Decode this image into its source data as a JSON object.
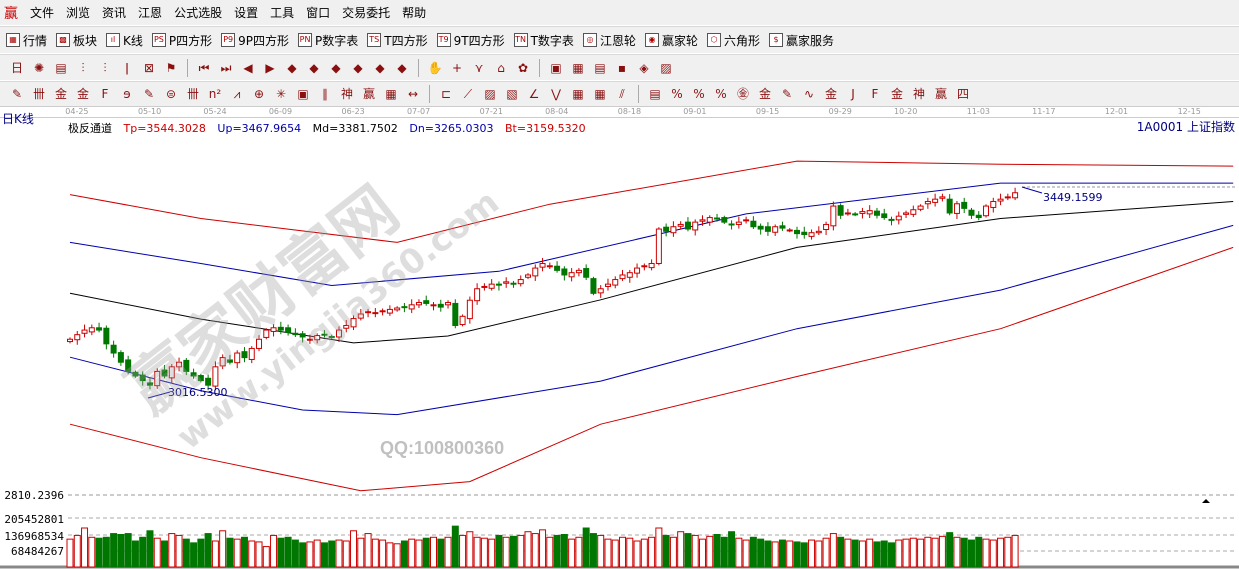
{
  "menu": {
    "logo": "赢",
    "items": [
      "文件",
      "浏览",
      "资讯",
      "江恩",
      "公式选股",
      "设置",
      "工具",
      "窗口",
      "交易委托",
      "帮助"
    ]
  },
  "toolbar1": [
    {
      "icon": "table-icon",
      "glyph": "▦",
      "label": "行情"
    },
    {
      "icon": "blocks-icon",
      "glyph": "▩",
      "label": "板块"
    },
    {
      "icon": "kline-icon",
      "glyph": "ıl",
      "label": "K线"
    },
    {
      "icon": "ps-icon",
      "glyph": "PS",
      "label": "P四方形"
    },
    {
      "icon": "p9-icon",
      "glyph": "P9",
      "label": "9P四方形"
    },
    {
      "icon": "pn-icon",
      "glyph": "PN",
      "label": "P数字表"
    },
    {
      "icon": "ts-icon",
      "glyph": "TS",
      "label": "T四方形"
    },
    {
      "icon": "t9-icon",
      "glyph": "T9",
      "label": "9T四方形"
    },
    {
      "icon": "tn-icon",
      "glyph": "TN",
      "label": "T数字表"
    },
    {
      "icon": "gann-wheel-icon",
      "glyph": "◎",
      "label": "江恩轮"
    },
    {
      "icon": "yingjia-wheel-icon",
      "glyph": "◉",
      "label": "赢家轮"
    },
    {
      "icon": "hexagon-icon",
      "glyph": "⬡",
      "label": "六角形"
    },
    {
      "icon": "dollar-icon",
      "glyph": "$",
      "label": "赢家服务"
    }
  ],
  "toolbar2": [
    "period-icon",
    "chart-icon",
    "doc-icon",
    "bars3-icon",
    "bars9-icon",
    "candle-icon",
    "extreme-icon",
    "flag-icon",
    "|",
    "first-icon",
    "last-icon",
    "left-icon",
    "right-icon",
    "nav1-icon",
    "nav2-icon",
    "nav3-icon",
    "nav4-icon",
    "nav5-icon",
    "nav6-icon",
    "|",
    "hand-icon",
    "crosshair-icon",
    "line-icon",
    "node-icon",
    "pattern-icon",
    "|",
    "calendar-icon",
    "calculator-icon",
    "note-icon",
    "save-icon",
    "network-icon",
    "export-icon"
  ],
  "toolbar2_glyphs": [
    "日",
    "✺",
    "▤",
    "⫶",
    "⫶",
    "ǀ",
    "⊠",
    "⚑",
    "",
    "⏮",
    "⏭",
    "◀",
    "▶",
    "◆",
    "◆",
    "◆",
    "◆",
    "◆",
    "◆",
    "",
    "✋",
    "+",
    "⋎",
    "⌂",
    "✿",
    "",
    "▣",
    "▦",
    "▤",
    "▪",
    "◈",
    "▨"
  ],
  "toolbar3": [
    "pen-icon",
    "grid1-icon",
    "gold1-icon",
    "gold2-icon",
    "fib-icon",
    "spiral-icon",
    "pen2-icon",
    "circle-icon",
    "grid2-icon",
    "n2-icon",
    "angle-icon",
    "target-icon",
    "star-icon",
    "square-icon",
    "lines-icon",
    "god-icon",
    "win-icon",
    "box-icon",
    "span-icon",
    "|",
    "rect-icon",
    "fan-icon",
    "diag-icon",
    "fan2-icon",
    "angle2-icon",
    "wave-icon",
    "grid3-icon",
    "grid4-icon",
    "slash-icon",
    "|",
    "list-icon",
    "percent1-icon",
    "percent2-icon",
    "percent3-icon",
    "gold3-icon",
    "gold4-icon",
    "pen3-icon",
    "wave2-icon",
    "gold5-icon",
    "j-icon",
    "f-icon",
    "gold6-icon",
    "shen-icon",
    "ying-icon",
    "si-icon"
  ],
  "toolbar3_glyphs": [
    "✎",
    "卌",
    "金",
    "金",
    "F",
    "ɘ",
    "✎",
    "⊜",
    "卌",
    "n²",
    "⩘",
    "⊕",
    "✳",
    "▣",
    "∥",
    "神",
    "赢",
    "▦",
    "↔",
    "",
    "⊏",
    "⟋",
    "▨",
    "▧",
    "∠",
    "⋁",
    "▦",
    "▦",
    "⫽",
    "",
    "▤",
    "%",
    "%",
    "%",
    "㊎",
    "金",
    "✎",
    "∿",
    "金",
    "J",
    "F",
    "金",
    "神",
    "赢",
    "四"
  ],
  "period_label": "日K线",
  "indicator": {
    "name": "极反通道",
    "tp": "Tp=3544.3028",
    "up": "Up=3467.9654",
    "md": "Md=3381.7502",
    "dn": "Dn=3265.0303",
    "bt": "Bt=3159.5320"
  },
  "symbol": "1A0001  上证指数",
  "watermark": {
    "brand": "赢家财富网",
    "url": "www.yingjia360.com",
    "qq": "QQ:100800360"
  },
  "chart_data": {
    "type": "candlestick",
    "ylim": [
      2780,
      3590
    ],
    "date_ticks": [
      {
        "i": 1,
        "label": "04-25"
      },
      {
        "i": 11,
        "label": "05-10"
      },
      {
        "i": 20,
        "label": "05-24"
      },
      {
        "i": 29,
        "label": "06-09"
      },
      {
        "i": 39,
        "label": "06-23"
      },
      {
        "i": 48,
        "label": "07-07"
      },
      {
        "i": 58,
        "label": "07-21"
      },
      {
        "i": 67,
        "label": "08-04"
      },
      {
        "i": 77,
        "label": "08-18"
      },
      {
        "i": 86,
        "label": "09-01"
      },
      {
        "i": 96,
        "label": "09-15"
      },
      {
        "i": 106,
        "label": "09-29"
      },
      {
        "i": 115,
        "label": "10-20"
      },
      {
        "i": 125,
        "label": "11-03"
      },
      {
        "i": 134,
        "label": "11-17"
      },
      {
        "i": 144,
        "label": "12-01"
      },
      {
        "i": 154,
        "label": "12-15"
      }
    ],
    "closes": [
      3130,
      3140,
      3150,
      3155,
      3150,
      3120,
      3100,
      3080,
      3060,
      3050,
      3040,
      3030,
      3060,
      3050,
      3070,
      3080,
      3060,
      3050,
      3040,
      3030,
      3070,
      3090,
      3080,
      3100,
      3090,
      3110,
      3130,
      3150,
      3155,
      3150,
      3145,
      3140,
      3135,
      3130,
      3138,
      3140,
      3135,
      3150,
      3160,
      3175,
      3185,
      3190,
      3188,
      3192,
      3195,
      3198,
      3200,
      3205,
      3210,
      3208,
      3205,
      3200,
      3210,
      3160,
      3180,
      3215,
      3240,
      3245,
      3250,
      3248,
      3255,
      3250,
      3260,
      3270,
      3285,
      3295,
      3290,
      3280,
      3270,
      3275,
      3280,
      3265,
      3230,
      3240,
      3250,
      3260,
      3270,
      3275,
      3285,
      3290,
      3295,
      3370,
      3365,
      3375,
      3380,
      3370,
      3385,
      3390,
      3395,
      3392,
      3385,
      3380,
      3385,
      3390,
      3375,
      3370,
      3365,
      3375,
      3372,
      3368,
      3360,
      3358,
      3362,
      3365,
      3380,
      3420,
      3400,
      3405,
      3402,
      3408,
      3410,
      3400,
      3395,
      3390,
      3398,
      3405,
      3412,
      3420,
      3430,
      3435,
      3440,
      3405,
      3425,
      3415,
      3400,
      3395,
      3420,
      3430,
      3435,
      3440,
      3449
    ],
    "volumes": [
      150000000.0,
      170000000.0,
      210000000.0,
      160000000.0,
      155000000.0,
      160000000.0,
      180000000.0,
      175000000.0,
      180000000.0,
      140000000.0,
      160000000.0,
      195000000.0,
      155000000.0,
      140000000.0,
      180000000.0,
      170000000.0,
      150000000.0,
      130000000.0,
      150000000.0,
      180000000.0,
      140000000.0,
      195000000.0,
      155000000.0,
      150000000.0,
      160000000.0,
      140000000.0,
      135000000.0,
      110000000.0,
      170000000.0,
      155000000.0,
      160000000.0,
      145000000.0,
      130000000.0,
      135000000.0,
      145000000.0,
      130000000.0,
      140000000.0,
      145000000.0,
      140000000.0,
      195000000.0,
      155000000.0,
      180000000.0,
      150000000.0,
      145000000.0,
      130000000.0,
      125000000.0,
      140000000.0,
      150000000.0,
      145000000.0,
      155000000.0,
      160000000.0,
      150000000.0,
      160000000.0,
      220000000.0,
      170000000.0,
      190000000.0,
      160000000.0,
      155000000.0,
      150000000.0,
      170000000.0,
      160000000.0,
      165000000.0,
      170000000.0,
      190000000.0,
      180000000.0,
      200000000.0,
      160000000.0,
      170000000.0,
      175000000.0,
      150000000.0,
      160000000.0,
      210000000.0,
      180000000.0,
      170000000.0,
      150000000.0,
      145000000.0,
      160000000.0,
      155000000.0,
      140000000.0,
      150000000.0,
      160000000.0,
      210000000.0,
      170000000.0,
      160000000.0,
      190000000.0,
      180000000.0,
      170000000.0,
      150000000.0,
      165000000.0,
      175000000.0,
      160000000.0,
      190000000.0,
      155000000.0,
      145000000.0,
      160000000.0,
      150000000.0,
      140000000.0,
      135000000.0,
      145000000.0,
      140000000.0,
      135000000.0,
      130000000.0,
      145000000.0,
      140000000.0,
      155000000.0,
      180000000.0,
      160000000.0,
      150000000.0,
      145000000.0,
      140000000.0,
      150000000.0,
      135000000.0,
      140000000.0,
      130000000.0,
      145000000.0,
      150000000.0,
      155000000.0,
      150000000.0,
      160000000.0,
      155000000.0,
      165000000.0,
      185000000.0,
      160000000.0,
      155000000.0,
      145000000.0,
      160000000.0,
      150000000.0,
      145000000.0,
      155000000.0,
      160000000.0,
      170000000.0
    ],
    "channels": [
      {
        "color": "#cc0000",
        "points": [
          [
            0,
            3445
          ],
          [
            18,
            3393
          ],
          [
            45,
            3341
          ],
          [
            66,
            3424
          ],
          [
            100,
            3518
          ],
          [
            128,
            3511
          ],
          [
            160,
            3507
          ]
        ]
      },
      {
        "color": "#0000aa",
        "points": [
          [
            0,
            3341
          ],
          [
            18,
            3295
          ],
          [
            36,
            3247
          ],
          [
            59,
            3278
          ],
          [
            93,
            3403
          ],
          [
            128,
            3470
          ],
          [
            160,
            3470
          ]
        ]
      },
      {
        "color": "#000000",
        "points": [
          [
            0,
            3230
          ],
          [
            18,
            3174
          ],
          [
            39,
            3122
          ],
          [
            52,
            3137
          ],
          [
            73,
            3216
          ],
          [
            100,
            3330
          ],
          [
            128,
            3393
          ],
          [
            160,
            3430
          ]
        ]
      },
      {
        "color": "#0000aa",
        "points": [
          [
            0,
            3091
          ],
          [
            18,
            3018
          ],
          [
            32,
            2976
          ],
          [
            45,
            2966
          ],
          [
            73,
            3039
          ],
          [
            100,
            3153
          ],
          [
            128,
            3237
          ],
          [
            160,
            3378
          ]
        ]
      },
      {
        "color": "#cc0000",
        "points": [
          [
            0,
            2945
          ],
          [
            18,
            2872
          ],
          [
            40,
            2800
          ],
          [
            55,
            2820
          ],
          [
            73,
            2945
          ],
          [
            100,
            3049
          ],
          [
            128,
            3153
          ],
          [
            160,
            3330
          ]
        ]
      }
    ],
    "price_labels": {
      "low": "3016.5300",
      "high": "3449.1599",
      "bottom_axis": "2810.2396"
    },
    "volume_ticks": [
      "205452801",
      "136968534",
      "68484267"
    ],
    "colors": {
      "up": "#cc0000",
      "down": "#007700"
    }
  }
}
